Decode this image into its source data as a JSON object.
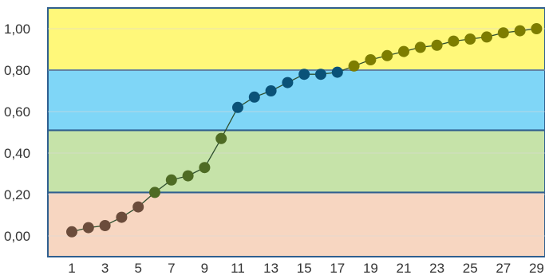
{
  "chart_data": {
    "type": "line",
    "x": [
      1,
      2,
      3,
      4,
      5,
      6,
      7,
      8,
      9,
      10,
      11,
      12,
      13,
      14,
      15,
      16,
      17,
      18,
      19,
      20,
      21,
      22,
      23,
      24,
      25,
      26,
      27,
      28,
      29
    ],
    "x_tick_labels": [
      "1",
      "3",
      "5",
      "7",
      "9",
      "11",
      "13",
      "15",
      "17",
      "19",
      "21",
      "23",
      "25",
      "27",
      "29"
    ],
    "y_tick_labels": [
      "0,00",
      "0,20",
      "0,40",
      "0,60",
      "0,80",
      "1,00"
    ],
    "ylim": [
      -0.1,
      1.1
    ],
    "grid": true,
    "legend": "none",
    "series": [
      {
        "values": [
          0.02,
          0.04,
          0.05,
          0.09,
          0.14,
          0.21,
          0.27,
          0.29,
          0.33,
          0.47,
          0.62,
          0.67,
          0.7,
          0.74,
          0.78,
          0.78,
          0.79,
          0.82,
          0.85,
          0.87,
          0.89,
          0.91,
          0.92,
          0.94,
          0.95,
          0.96,
          0.98,
          0.99,
          1.0
        ],
        "line_color": "#2f4f2f"
      }
    ],
    "bands": [
      {
        "name": "red",
        "from": -0.1,
        "to": 0.21,
        "fill": "#f7d6c1",
        "point_color": "#6b4c3b"
      },
      {
        "name": "green",
        "from": 0.21,
        "to": 0.51,
        "fill": "#c6e3a9",
        "point_color": "#4e6b24"
      },
      {
        "name": "blue",
        "from": 0.51,
        "to": 0.8,
        "fill": "#7fd6f7",
        "point_color": "#0a5278"
      },
      {
        "name": "yellow",
        "from": 0.8,
        "to": 1.1,
        "fill": "#fff87a",
        "point_color": "#7d7d00"
      }
    ],
    "colors": {
      "band_border": "#2f5f8f",
      "grid": "#d9d9d9",
      "line": "#2f4f2f"
    }
  }
}
